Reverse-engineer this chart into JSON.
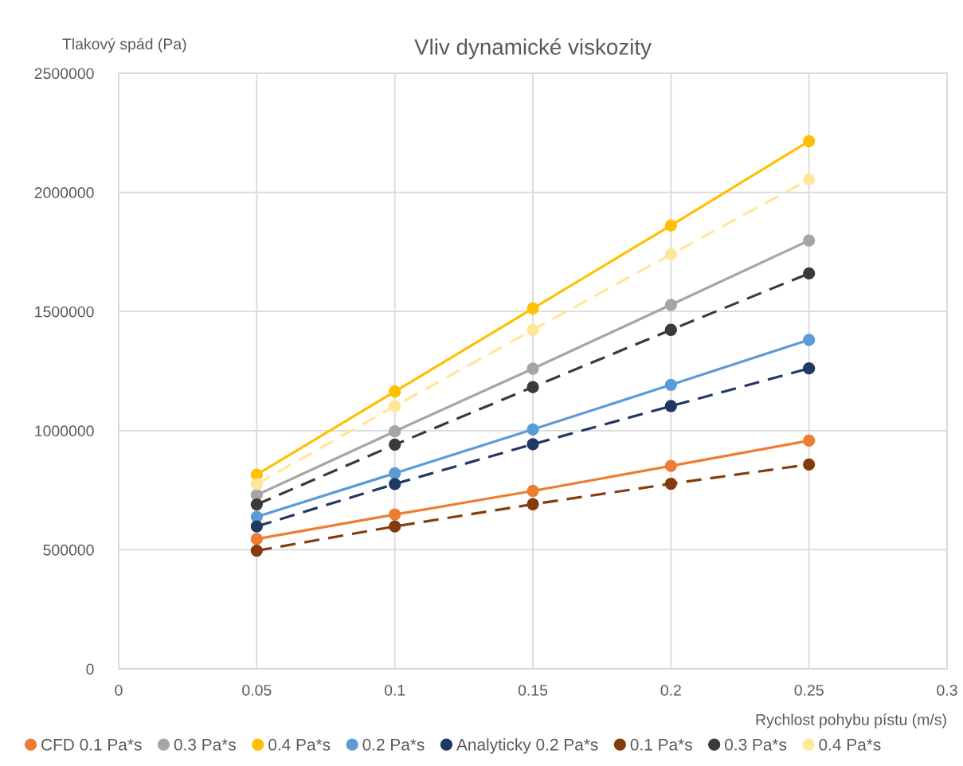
{
  "chart_data": {
    "type": "line",
    "title": "Vliv dynamické viskozity",
    "xlabel": "Rychlost pohybu pístu (m/s)",
    "ylabel": "Tlakový spád (Pa)",
    "x": [
      0.05,
      0.1,
      0.15,
      0.2,
      0.25
    ],
    "xlim": [
      0,
      0.3
    ],
    "xticks": [
      0,
      0.05,
      0.1,
      0.15,
      0.2,
      0.25,
      0.3
    ],
    "ylim": [
      0,
      2500000
    ],
    "yticks": [
      0,
      500000,
      1000000,
      1500000,
      2000000,
      2500000
    ],
    "grid": true,
    "legend": "bottom",
    "marker": "circle",
    "series": [
      {
        "name": "CFD 0.1 Pa*s",
        "color": "#ed7d31",
        "line_style": "solid",
        "values": [
          545000,
          648000,
          747000,
          852000,
          958000
        ]
      },
      {
        "name": "0.3 Pa*s",
        "color": "#a5a5a5",
        "line_style": "solid",
        "values": [
          730000,
          997000,
          1260000,
          1528000,
          1798000
        ]
      },
      {
        "name": "0.4 Pa*s",
        "color": "#ffc000",
        "line_style": "solid",
        "values": [
          815000,
          1164000,
          1513000,
          1861000,
          2215000
        ]
      },
      {
        "name": "0.2 Pa*s",
        "color": "#5b9bd5",
        "line_style": "solid",
        "values": [
          638000,
          821000,
          1005000,
          1192000,
          1381000
        ]
      },
      {
        "name": "Analyticky 0.2 Pa*s",
        "color": "#203864",
        "line_style": "dashed",
        "values": [
          598000,
          776000,
          943000,
          1103000,
          1261000
        ]
      },
      {
        "name": "0.1 Pa*s",
        "color": "#843c0c",
        "line_style": "dashed",
        "values": [
          496000,
          598000,
          691000,
          777000,
          858000
        ]
      },
      {
        "name": "0.3 Pa*s",
        "color": "#3a3a3a",
        "line_style": "dashed",
        "values": [
          690000,
          941000,
          1183000,
          1423000,
          1660000
        ]
      },
      {
        "name": "0.4 Pa*s",
        "color": "#ffe699",
        "line_style": "dashed",
        "values": [
          776000,
          1103000,
          1423000,
          1740000,
          2054000
        ]
      }
    ]
  }
}
